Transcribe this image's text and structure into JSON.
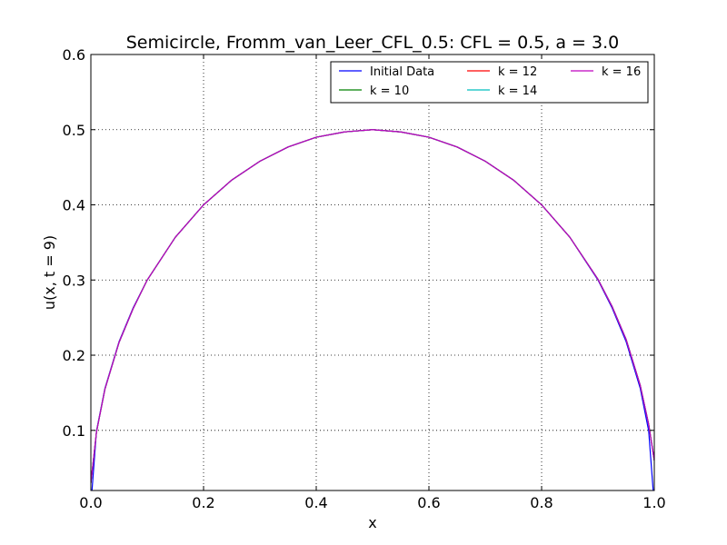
{
  "chart_data": {
    "type": "line",
    "title": "Semicircle, Fromm_van_Leer_CFL_0.5: CFL = 0.5, a = 3.0",
    "xlabel": "x",
    "ylabel": "u(x, t = 9)",
    "xlim": [
      0.0,
      1.0
    ],
    "ylim": [
      0.02,
      0.6
    ],
    "grid": true,
    "legend_position": "top-right",
    "x_ticks": [
      0.0,
      0.2,
      0.4,
      0.6,
      0.8,
      1.0
    ],
    "x_tick_labels": [
      "0.0",
      "0.2",
      "0.4",
      "0.6",
      "0.8",
      "1.0"
    ],
    "y_ticks": [
      0.1,
      0.2,
      0.3,
      0.4,
      0.5,
      0.6
    ],
    "y_tick_labels": [
      "0.1",
      "0.2",
      "0.3",
      "0.4",
      "0.5",
      "0.6"
    ],
    "x": [
      0.0,
      0.01,
      0.025,
      0.05,
      0.075,
      0.1,
      0.15,
      0.2,
      0.25,
      0.3,
      0.35,
      0.4,
      0.45,
      0.5,
      0.55,
      0.6,
      0.65,
      0.7,
      0.75,
      0.8,
      0.85,
      0.9,
      0.925,
      0.95,
      0.975,
      0.99,
      1.0
    ],
    "series": [
      {
        "name": "Initial Data",
        "color": "#0000ff",
        "values": [
          0.0,
          0.0995,
          0.156,
          0.218,
          0.263,
          0.3,
          0.357,
          0.4,
          0.433,
          0.458,
          0.477,
          0.49,
          0.497,
          0.5,
          0.497,
          0.49,
          0.477,
          0.458,
          0.433,
          0.4,
          0.357,
          0.3,
          0.263,
          0.218,
          0.156,
          0.0995,
          0.0
        ]
      },
      {
        "name": "k = 10",
        "color": "#008000",
        "values": [
          0.03,
          0.098,
          0.155,
          0.217,
          0.262,
          0.3,
          0.357,
          0.4,
          0.433,
          0.458,
          0.477,
          0.49,
          0.497,
          0.5,
          0.497,
          0.49,
          0.477,
          0.458,
          0.433,
          0.4,
          0.357,
          0.301,
          0.265,
          0.221,
          0.16,
          0.108,
          0.06
        ]
      },
      {
        "name": "k = 12",
        "color": "#ff0000",
        "values": [
          0.03,
          0.098,
          0.155,
          0.217,
          0.262,
          0.3,
          0.357,
          0.4,
          0.433,
          0.458,
          0.477,
          0.49,
          0.497,
          0.5,
          0.497,
          0.49,
          0.477,
          0.458,
          0.433,
          0.4,
          0.357,
          0.301,
          0.265,
          0.221,
          0.16,
          0.108,
          0.06
        ]
      },
      {
        "name": "k = 14",
        "color": "#00bfbf",
        "values": [
          0.03,
          0.098,
          0.155,
          0.217,
          0.262,
          0.3,
          0.357,
          0.4,
          0.433,
          0.458,
          0.477,
          0.49,
          0.497,
          0.5,
          0.497,
          0.49,
          0.477,
          0.458,
          0.433,
          0.4,
          0.357,
          0.301,
          0.265,
          0.221,
          0.16,
          0.108,
          0.06
        ]
      },
      {
        "name": "k = 16",
        "color": "#bf00bf",
        "values": [
          0.03,
          0.098,
          0.155,
          0.217,
          0.262,
          0.3,
          0.357,
          0.4,
          0.433,
          0.458,
          0.477,
          0.49,
          0.497,
          0.5,
          0.497,
          0.49,
          0.477,
          0.458,
          0.433,
          0.4,
          0.357,
          0.301,
          0.265,
          0.221,
          0.16,
          0.108,
          0.06
        ]
      }
    ]
  }
}
